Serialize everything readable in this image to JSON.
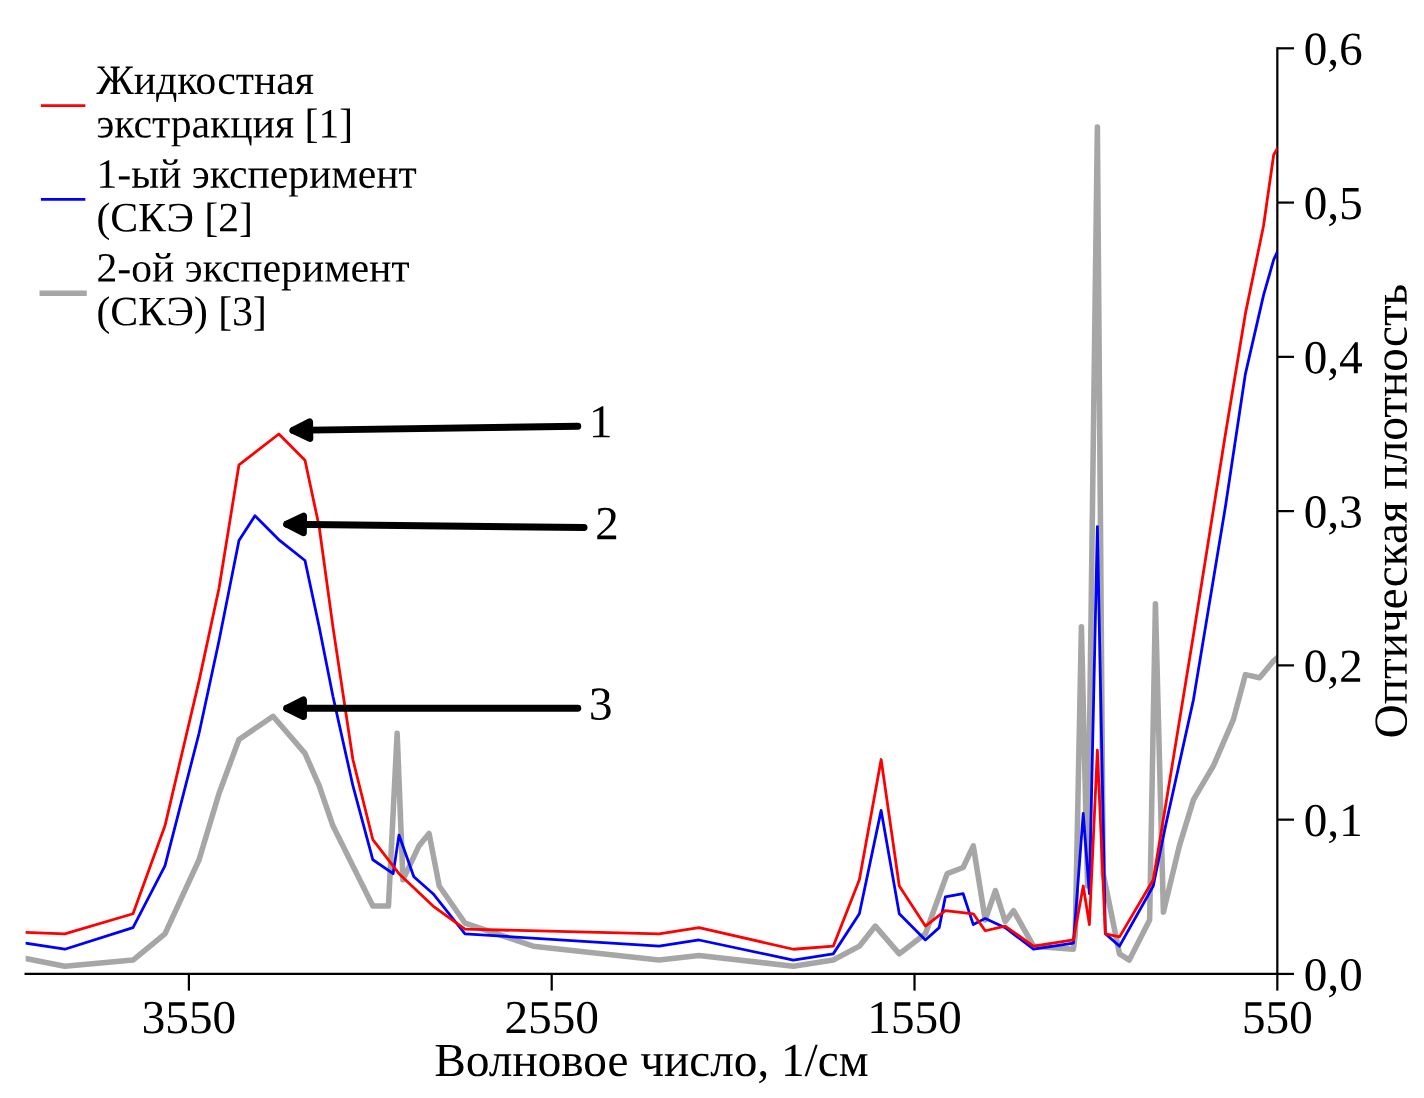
{
  "chart_data": {
    "type": "line",
    "xlabel": "Волновое число, 1/см",
    "ylabel": "Оптическая плотность",
    "xlim": [
      4000,
      550
    ],
    "xticks": [
      3550,
      2550,
      1550,
      550
    ],
    "ylim": [
      0,
      0.6
    ],
    "yticks": [
      {
        "value": 0,
        "label": "0,0"
      },
      {
        "value": 0.1,
        "label": "0,1"
      },
      {
        "value": 0.2,
        "label": "0,2"
      },
      {
        "value": 0.3,
        "label": "0,3"
      },
      {
        "value": 0.4,
        "label": "0,4"
      },
      {
        "value": 0.5,
        "label": "0,5"
      },
      {
        "value": 0.6,
        "label": "0,6"
      }
    ],
    "grid": false,
    "legend": "top left",
    "marker": "none",
    "line_style": "solid",
    "series": [
      {
        "name": "Жидкостная\nэкстракция [1]",
        "color": "#ff0000",
        "x": [
          4000,
          3892,
          3704,
          3616,
          3522,
          3467,
          3412,
          3302,
          3230,
          3191,
          3153,
          3098,
          3043,
          2971,
          2877,
          2789,
          2254,
          2144,
          1884,
          1774,
          1702,
          1642,
          1592,
          1520,
          1465,
          1388,
          1355,
          1300,
          1222,
          1112,
          1085,
          1068,
          1046,
          1024,
          985,
          892,
          858,
          781,
          693,
          638,
          588,
          560,
          550
        ],
        "values": [
          0.027,
          0.026,
          0.039,
          0.096,
          0.19,
          0.25,
          0.33,
          0.35,
          0.333,
          0.29,
          0.225,
          0.139,
          0.087,
          0.065,
          0.044,
          0.029,
          0.026,
          0.03,
          0.016,
          0.018,
          0.061,
          0.139,
          0.057,
          0.031,
          0.041,
          0.039,
          0.028,
          0.031,
          0.018,
          0.022,
          0.057,
          0.032,
          0.145,
          0.026,
          0.024,
          0.061,
          0.109,
          0.22,
          0.35,
          0.428,
          0.485,
          0.531,
          0.535
        ]
      },
      {
        "name": "1-ый эксперимент\n(СКЭ [2]",
        "color": "#0000ff",
        "x": [
          4000,
          3892,
          3704,
          3616,
          3522,
          3467,
          3412,
          3368,
          3300,
          3230,
          3191,
          3153,
          3098,
          3043,
          2987,
          2971,
          2930,
          2877,
          2789,
          2254,
          2144,
          1884,
          1774,
          1702,
          1642,
          1592,
          1520,
          1482,
          1465,
          1416,
          1388,
          1355,
          1300,
          1222,
          1112,
          1085,
          1068,
          1046,
          1024,
          985,
          892,
          858,
          781,
          693,
          638,
          588,
          560,
          550
        ],
        "values": [
          0.02,
          0.016,
          0.03,
          0.07,
          0.156,
          0.216,
          0.281,
          0.297,
          0.281,
          0.268,
          0.225,
          0.18,
          0.122,
          0.074,
          0.065,
          0.09,
          0.063,
          0.052,
          0.026,
          0.018,
          0.022,
          0.009,
          0.013,
          0.039,
          0.106,
          0.039,
          0.022,
          0.03,
          0.05,
          0.052,
          0.032,
          0.036,
          0.03,
          0.016,
          0.02,
          0.104,
          0.052,
          0.29,
          0.026,
          0.018,
          0.057,
          0.096,
          0.178,
          0.303,
          0.389,
          0.44,
          0.463,
          0.468
        ]
      },
      {
        "name": "2-ой эксперимент\n(СКЭ) [3]",
        "color": "#a6a6a6",
        "x": [
          4000,
          3892,
          3704,
          3616,
          3522,
          3467,
          3412,
          3318,
          3230,
          3191,
          3153,
          3098,
          3043,
          3000,
          2976,
          2960,
          2916,
          2888,
          2860,
          2789,
          2601,
          2254,
          2144,
          1884,
          1774,
          1702,
          1658,
          1592,
          1520,
          1460,
          1416,
          1388,
          1355,
          1327,
          1300,
          1277,
          1222,
          1112,
          1107,
          1090,
          1073,
          1046,
          1030,
          985,
          958,
          902,
          886,
          864,
          820,
          781,
          726,
          671,
          638,
          599,
          560,
          550
        ],
        "values": [
          0.01,
          0.005,
          0.009,
          0.026,
          0.074,
          0.117,
          0.152,
          0.167,
          0.143,
          0.122,
          0.096,
          0.07,
          0.044,
          0.044,
          0.156,
          0.061,
          0.083,
          0.091,
          0.057,
          0.033,
          0.018,
          0.009,
          0.012,
          0.005,
          0.009,
          0.018,
          0.031,
          0.013,
          0.026,
          0.065,
          0.069,
          0.083,
          0.035,
          0.054,
          0.034,
          0.041,
          0.018,
          0.016,
          0.026,
          0.225,
          0.057,
          0.549,
          0.065,
          0.013,
          0.009,
          0.035,
          0.24,
          0.04,
          0.083,
          0.113,
          0.135,
          0.165,
          0.194,
          0.192,
          0.203,
          0.205
        ]
      }
    ],
    "annotations": [
      "1",
      "2",
      "3"
    ]
  }
}
